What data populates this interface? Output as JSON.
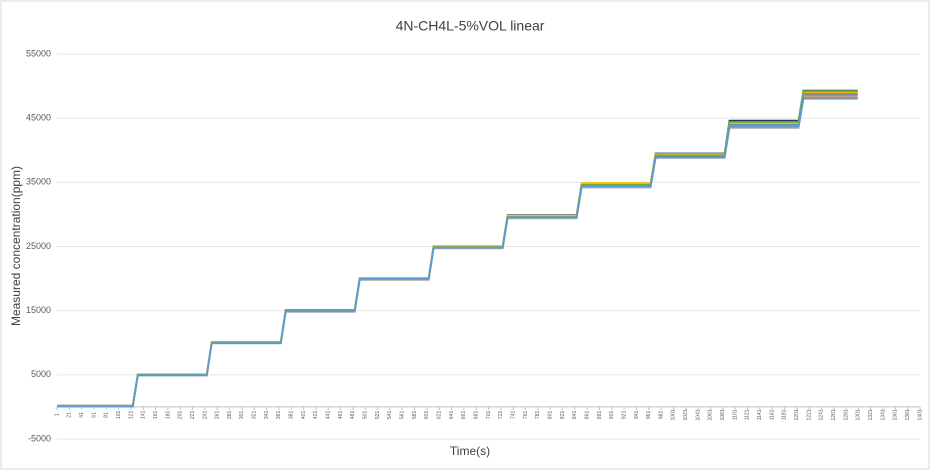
{
  "chart_data": {
    "type": "line",
    "title": "4N-CH4L-5%VOL linear",
    "x_label": "Time(s)",
    "y_label": "Measured concentration(ppm)",
    "x": [
      1,
      124,
      132,
      244,
      252,
      364,
      372,
      484,
      492,
      604,
      612,
      724,
      732,
      844,
      852,
      964,
      972,
      1084,
      1092,
      1204,
      1212,
      1300
    ],
    "series": [
      {
        "color": "#1f3864",
        "values": [
          200,
          200,
          5050,
          5050,
          10100,
          10100,
          15100,
          15100,
          20050,
          20050,
          25050,
          25050,
          29900,
          29900,
          34800,
          34800,
          39500,
          39500,
          44600,
          44600,
          49300,
          49300
        ]
      },
      {
        "color": "#4472c4",
        "values": [
          100,
          100,
          4950,
          4950,
          9950,
          9950,
          14900,
          14900,
          19900,
          19900,
          24800,
          24800,
          29500,
          29500,
          34300,
          34300,
          39000,
          39000,
          44000,
          44000,
          48800,
          48800
        ]
      },
      {
        "color": "#ed7d31",
        "values": [
          150,
          150,
          5000,
          5000,
          10000,
          10000,
          15000,
          15000,
          20000,
          20000,
          25000,
          25000,
          29700,
          29700,
          34700,
          34700,
          39300,
          39300,
          43800,
          43800,
          48500,
          48500
        ]
      },
      {
        "color": "#a5a5a5",
        "values": [
          50,
          50,
          4900,
          4900,
          9900,
          9900,
          14800,
          14800,
          19800,
          19800,
          24700,
          24700,
          29400,
          29400,
          34200,
          34200,
          38800,
          38800,
          43500,
          43500,
          48000,
          48000
        ]
      },
      {
        "color": "#ffc000",
        "values": [
          180,
          180,
          5020,
          5020,
          10050,
          10050,
          15050,
          15050,
          20100,
          20100,
          25100,
          25100,
          29800,
          29800,
          34900,
          34900,
          39400,
          39400,
          44200,
          44200,
          49000,
          49000
        ]
      },
      {
        "color": "#70ad47",
        "values": [
          120,
          120,
          5000,
          5000,
          10000,
          10000,
          15000,
          15000,
          20000,
          20000,
          24900,
          24900,
          29600,
          29600,
          34600,
          34600,
          39200,
          39200,
          44400,
          44400,
          49200,
          49200
        ]
      },
      {
        "color": "#5b9bd5",
        "values": [
          80,
          80,
          4950,
          4950,
          9950,
          9950,
          14950,
          14950,
          19950,
          19950,
          24850,
          24850,
          29550,
          29550,
          34400,
          34400,
          38900,
          38900,
          43700,
          43700,
          48200,
          48200
        ]
      }
    ],
    "xlim": [
      1,
      1401
    ],
    "xticks": [
      1,
      21,
      41,
      61,
      81,
      101,
      121,
      141,
      161,
      181,
      201,
      221,
      241,
      261,
      281,
      301,
      321,
      341,
      361,
      381,
      401,
      421,
      441,
      461,
      481,
      501,
      521,
      541,
      561,
      581,
      601,
      621,
      641,
      661,
      681,
      701,
      721,
      741,
      761,
      781,
      801,
      821,
      841,
      861,
      881,
      901,
      921,
      941,
      961,
      981,
      1001,
      1021,
      1041,
      1061,
      1081,
      1101,
      1121,
      1141,
      1161,
      1181,
      1201,
      1221,
      1241,
      1261,
      1281,
      1301,
      1321,
      1341,
      1361,
      1381,
      1401
    ],
    "ylim": [
      -5000,
      55000
    ],
    "yticks": [
      -5000,
      5000,
      15000,
      25000,
      35000,
      45000,
      55000
    ],
    "grid": true
  }
}
